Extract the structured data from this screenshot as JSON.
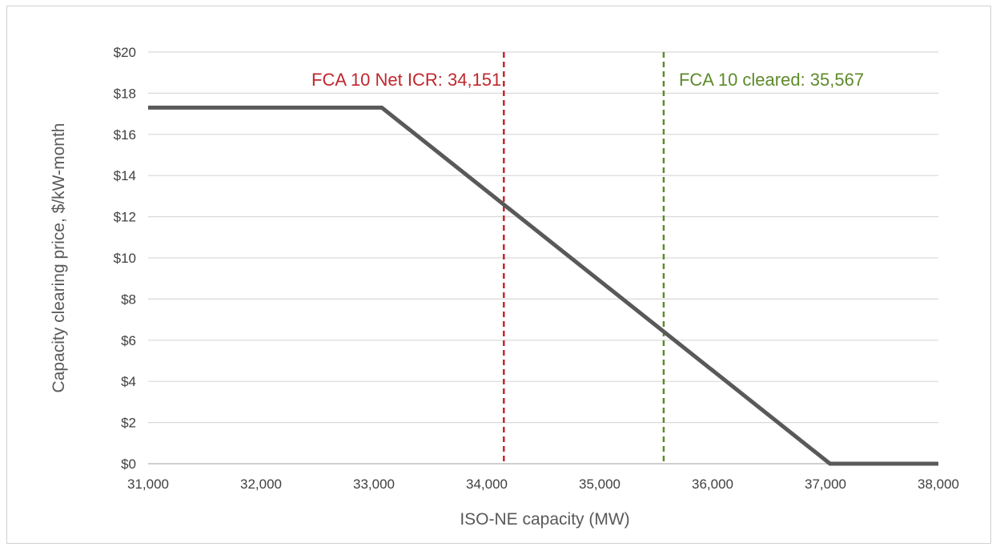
{
  "chart_data": {
    "type": "line",
    "title": "",
    "xlabel": "ISO-NE capacity (MW)",
    "ylabel": "Capacity clearing price, $/kW-month",
    "xlim": [
      31000,
      38000
    ],
    "ylim": [
      0,
      20
    ],
    "x_ticks": [
      31000,
      32000,
      33000,
      34000,
      35000,
      36000,
      37000,
      38000
    ],
    "x_tick_labels": [
      "31,000",
      "32,000",
      "33,000",
      "34,000",
      "35,000",
      "36,000",
      "37,000",
      "38,000"
    ],
    "y_ticks": [
      0,
      2,
      4,
      6,
      8,
      10,
      12,
      14,
      16,
      18,
      20
    ],
    "y_tick_labels": [
      "$0",
      "$2",
      "$4",
      "$6",
      "$8",
      "$10",
      "$12",
      "$14",
      "$16",
      "$18",
      "$20"
    ],
    "grid": "horizontal",
    "series": [
      {
        "x": [
          31000,
          33070,
          37040,
          38000
        ],
        "y": [
          17.3,
          17.3,
          0,
          0
        ],
        "color": "#595959"
      }
    ],
    "reference_lines": [
      {
        "x": 34151,
        "label": "FCA 10 Net ICR: 34,151",
        "color": "#c0272d",
        "label_position": "left"
      },
      {
        "x": 35567,
        "label": "FCA 10 cleared: 35,567",
        "color": "#5e8a2b",
        "label_position": "right"
      }
    ]
  }
}
